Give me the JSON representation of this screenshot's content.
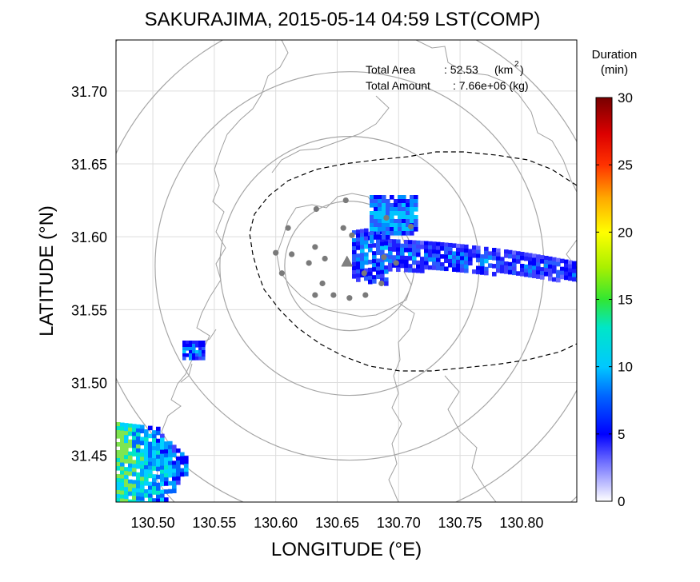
{
  "title": "SAKURAJIMA, 2015-05-14 04:59 LST(COMP)",
  "stats": {
    "area_label": "Total Area",
    "area_value": ": 52.53",
    "area_unit": "(km",
    "area_unit_sup": "2",
    "area_unit_close": ")",
    "amount_label": "Total Amount",
    "amount_value": ": 7.66e+06 (kg)"
  },
  "colorbar": {
    "title_line1": "Duration",
    "title_line2": "(min)",
    "ticks": [
      "30",
      "25",
      "20",
      "15",
      "10",
      "5",
      "0"
    ],
    "min": 0,
    "max": 30,
    "colors": [
      "#ffffff",
      "#6a6aff",
      "#0000ff",
      "#0096ff",
      "#00e6e6",
      "#32e632",
      "#ffff00",
      "#ff9600",
      "#ff0000",
      "#780000"
    ]
  },
  "axes": {
    "xlabel": "LONGITUDE (°E)",
    "ylabel": "LATITUDE (°N)",
    "xticks": [
      "130.50",
      "130.55",
      "130.60",
      "130.65",
      "130.70",
      "130.75",
      "130.80"
    ],
    "yticks": [
      "31.70",
      "31.65",
      "31.60",
      "31.55",
      "31.50",
      "31.45"
    ],
    "xlim": [
      130.47,
      130.845
    ],
    "ylim": [
      31.418,
      31.735
    ]
  },
  "map": {
    "range_ring_center": [
      130.66,
      31.58
    ],
    "range_rings_km": [
      5,
      10,
      15,
      20,
      25
    ],
    "vent": [
      130.658,
      31.583
    ],
    "stations": [
      [
        130.657,
        31.625
      ],
      [
        130.633,
        31.619
      ],
      [
        130.655,
        31.606
      ],
      [
        130.61,
        31.606
      ],
      [
        130.632,
        31.593
      ],
      [
        130.662,
        31.601
      ],
      [
        130.6,
        31.589
      ],
      [
        130.613,
        31.588
      ],
      [
        130.627,
        31.582
      ],
      [
        130.64,
        31.585
      ],
      [
        130.605,
        31.575
      ],
      [
        130.638,
        31.568
      ],
      [
        130.632,
        31.56
      ],
      [
        130.647,
        31.56
      ],
      [
        130.66,
        31.558
      ],
      [
        130.673,
        31.56
      ],
      [
        130.686,
        31.568
      ],
      [
        130.698,
        31.582
      ],
      [
        130.688,
        31.586
      ],
      [
        130.672,
        31.575
      ],
      [
        130.71,
        31.607
      ],
      [
        130.69,
        31.613
      ]
    ]
  }
}
